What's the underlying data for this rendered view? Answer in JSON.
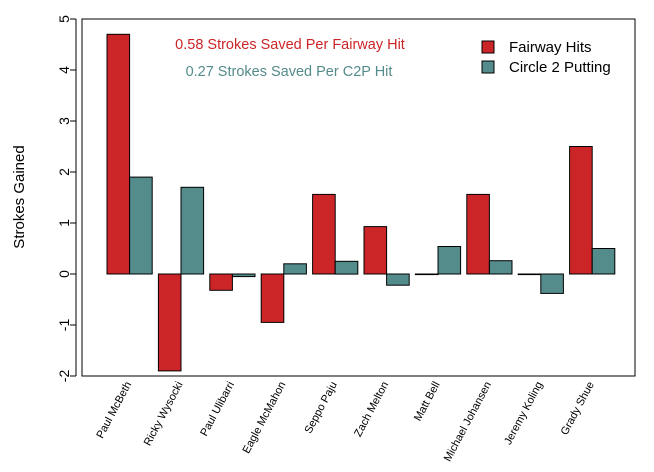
{
  "chart_data": {
    "type": "bar",
    "ylabel": "Strokes Gained",
    "xlabel": "",
    "ylim": [
      -2,
      5
    ],
    "yticks": [
      -2,
      -1,
      0,
      1,
      2,
      3,
      4,
      5
    ],
    "grid": false,
    "legend_position": "top-right",
    "categories": [
      "Paul McBeth",
      "Ricky Wysocki",
      "Paul Ulibarri",
      "Eagle McMahon",
      "Seppo Paju",
      "Zach Melton",
      "Matt Bell",
      "Michael Johansen",
      "Jeremy Koling",
      "Grady Shue"
    ],
    "series": [
      {
        "name": "Fairway Hits",
        "color": "#cc2528",
        "values": [
          4.7,
          -1.9,
          -0.32,
          -0.95,
          1.56,
          0.93,
          -0.01,
          1.56,
          -0.01,
          2.5
        ]
      },
      {
        "name": "Circle 2 Putting",
        "color": "#548b8b",
        "values": [
          1.9,
          1.7,
          -0.05,
          0.2,
          0.25,
          -0.22,
          0.54,
          0.26,
          -0.38,
          0.5
        ]
      }
    ],
    "annotations": [
      {
        "text": "0.58 Strokes Saved Per Fairway Hit",
        "color": "#cc2528"
      },
      {
        "text": "0.27 Strokes Saved Per C2P Hit",
        "color": "#548b8b"
      }
    ]
  }
}
